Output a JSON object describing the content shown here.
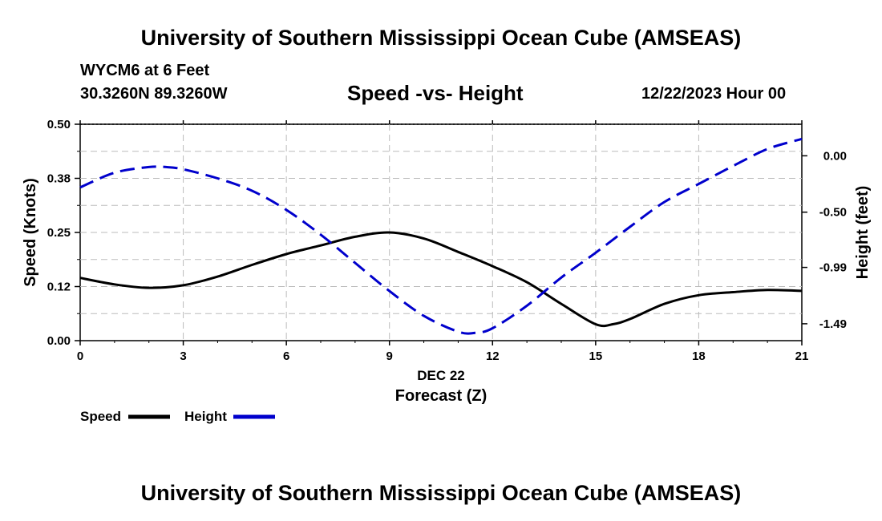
{
  "header": {
    "title": "University of Southern Mississippi Ocean Cube (AMSEAS)",
    "station": "WYCM6 at 6 Feet",
    "location": "30.3260N  89.3260W",
    "chart_title": "Speed -vs- Height",
    "datetime": "12/22/2023 Hour 00"
  },
  "footer": {
    "title": "University of Southern Mississippi Ocean Cube (AMSEAS)"
  },
  "legend": {
    "speed_label": "Speed",
    "height_label": "Height"
  },
  "colors": {
    "speed": "#000000",
    "height": "#0000cc",
    "grid": "#bbbbbb"
  },
  "chart_data": {
    "type": "line",
    "title": "Speed -vs- Height",
    "xlabel": "Forecast (Z)",
    "date_label": "DEC 22",
    "ylabel": "Speed (Knots)",
    "y2label": "Height (feet)",
    "xlim": [
      0,
      21
    ],
    "ylim": [
      0,
      0.5
    ],
    "y2lim": [
      -1.64,
      0.28
    ],
    "x_ticks": [
      0,
      3,
      6,
      9,
      12,
      15,
      18,
      21
    ],
    "x_tick_labels": [
      "0",
      "3",
      "6",
      "9",
      "12",
      "15",
      "18",
      "21"
    ],
    "y_ticks": [
      0,
      0.125,
      0.25,
      0.375,
      0.5
    ],
    "y_tick_labels": [
      "0.00",
      "0.12",
      "0.25",
      "0.38",
      "0.50"
    ],
    "y2_ticks": [
      0.0,
      -0.5,
      -0.99,
      -1.49
    ],
    "y2_tick_labels": [
      "0.00",
      "-0.50",
      "-0.99",
      "-1.49"
    ],
    "grid": true,
    "legend_position": "bottom-left",
    "series": [
      {
        "name": "Speed",
        "axis": "left",
        "style": "solid",
        "x": [
          0,
          1,
          2,
          3,
          4,
          5,
          6,
          7,
          8,
          9,
          10,
          11,
          12,
          13,
          14,
          15,
          15.5,
          16,
          17,
          18,
          19,
          20,
          21
        ],
        "values": [
          0.145,
          0.13,
          0.122,
          0.128,
          0.148,
          0.175,
          0.2,
          0.22,
          0.24,
          0.25,
          0.236,
          0.205,
          0.172,
          0.135,
          0.085,
          0.038,
          0.038,
          0.05,
          0.085,
          0.105,
          0.112,
          0.117,
          0.115
        ]
      },
      {
        "name": "Height",
        "axis": "right",
        "style": "dashed",
        "x": [
          0,
          1,
          2,
          2.5,
          3,
          4,
          5,
          6,
          7,
          8,
          9,
          10,
          11,
          11.5,
          12,
          13,
          14,
          15,
          16,
          17,
          18,
          19,
          20,
          21
        ],
        "values": [
          -0.28,
          -0.15,
          -0.1,
          -0.1,
          -0.12,
          -0.2,
          -0.31,
          -0.48,
          -0.7,
          -0.95,
          -1.2,
          -1.42,
          -1.56,
          -1.57,
          -1.53,
          -1.33,
          -1.08,
          -0.86,
          -0.63,
          -0.41,
          -0.25,
          -0.09,
          0.06,
          0.15
        ]
      }
    ]
  }
}
